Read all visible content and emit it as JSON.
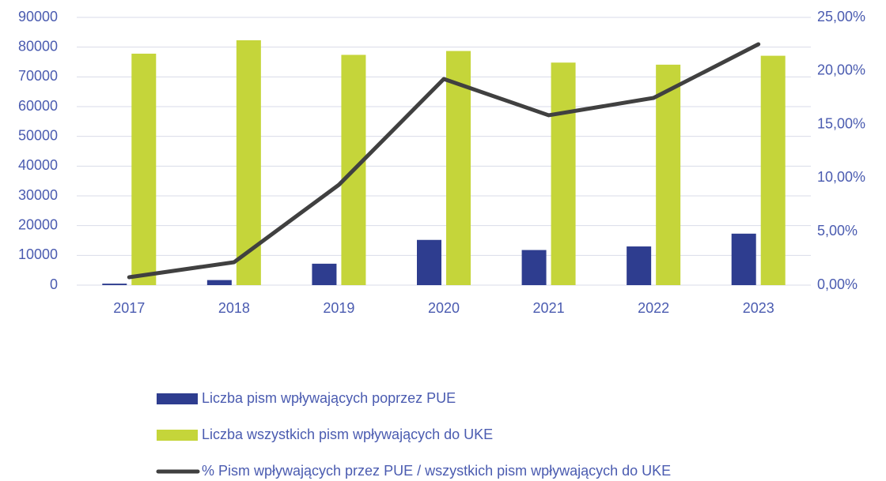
{
  "chart_data": {
    "type": "bar",
    "categories": [
      "2017",
      "2018",
      "2019",
      "2020",
      "2021",
      "2022",
      "2023"
    ],
    "series": [
      {
        "name": "Liczba pism wpływających poprzez PUE",
        "color": "#2e3d8f",
        "values": [
          500,
          1700,
          7200,
          15200,
          11800,
          13000,
          17300
        ]
      },
      {
        "name": "Liczba wszystkich pism wpływających do UKE",
        "color": "#c5d53a",
        "values": [
          77800,
          82300,
          77400,
          78700,
          74800,
          74100,
          77100
        ]
      },
      {
        "name": "% Pism wpływających przez PUE / wszystkich pism wpływających do UKE",
        "color": "#404040",
        "type": "line",
        "axis": "y2",
        "values": [
          0.74,
          2.14,
          9.37,
          19.25,
          15.86,
          17.48,
          22.49
        ]
      }
    ],
    "ylim": [
      0,
      90000
    ],
    "yticks": [
      0,
      10000,
      20000,
      30000,
      40000,
      50000,
      60000,
      70000,
      80000,
      90000
    ],
    "y2lim": [
      0,
      25
    ],
    "y2ticks": [
      {
        "value": 0,
        "label": "0,00%"
      },
      {
        "value": 5,
        "label": "5,00%"
      },
      {
        "value": 10,
        "label": "10,00%"
      },
      {
        "value": 15,
        "label": "15,00%"
      },
      {
        "value": 20,
        "label": "20,00%"
      },
      {
        "value": 25,
        "label": "25,00%"
      }
    ],
    "grid": true,
    "legend": "bottom"
  }
}
